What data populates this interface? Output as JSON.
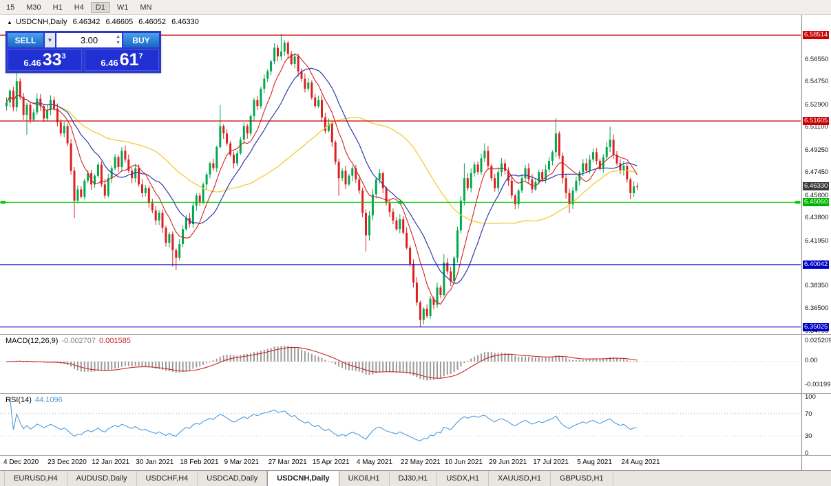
{
  "toolbar": {
    "timeframes": [
      {
        "label": "15",
        "active": false
      },
      {
        "label": "M30",
        "active": false
      },
      {
        "label": "H1",
        "active": false
      },
      {
        "label": "H4",
        "active": false
      },
      {
        "label": "D1",
        "active": true
      },
      {
        "label": "W1",
        "active": false
      },
      {
        "label": "MN",
        "active": false
      }
    ]
  },
  "chart_header": {
    "toggle_marker": "▲",
    "symbol_title": "USDCNH,Daily",
    "open": "6.46342",
    "high": "6.46605",
    "low": "6.46052",
    "close": "6.46330"
  },
  "trade_panel": {
    "sell_label": "SELL",
    "buy_label": "BUY",
    "lot_size": "3.00",
    "bid": {
      "small": "6.46",
      "big": "33",
      "sup": "3"
    },
    "ask": {
      "small": "6.46",
      "big": "61",
      "sup": "7"
    }
  },
  "price_axis": {
    "scale_labels": [
      "6.56550",
      "6.54750",
      "6.52900",
      "6.51100",
      "6.49250",
      "6.47450",
      "6.45600",
      "6.43800",
      "6.41950",
      "6.40150",
      "6.38350",
      "6.36500",
      "6.34700"
    ],
    "badges": [
      {
        "text": "6.58514",
        "price": 6.58514,
        "color": "#c80000"
      },
      {
        "text": "6.51605",
        "price": 6.51605,
        "color": "#c80000"
      },
      {
        "text": "6.46330",
        "price": 6.4633,
        "color": "#3c3c3c"
      },
      {
        "text": "6.45060",
        "price": 6.4506,
        "color": "#00b400"
      },
      {
        "text": "6.40042",
        "price": 6.40042,
        "color": "#0000c8"
      },
      {
        "text": "6.35025",
        "price": 6.35025,
        "color": "#0000c8"
      }
    ]
  },
  "macd_panel": {
    "label": "MACD(12,26,9)",
    "value_main": "-0.002707",
    "value_signal": "0.001585",
    "axis_top": "0.025209",
    "axis_mid": "0.00",
    "axis_bottom": "-0.031991"
  },
  "rsi_panel": {
    "label": "RSI(14)",
    "value": "44.1096",
    "axis_labels": [
      {
        "text": "100",
        "value": 100
      },
      {
        "text": "70",
        "value": 70
      },
      {
        "text": "30",
        "value": 30
      },
      {
        "text": "0",
        "value": 0
      }
    ]
  },
  "tabs": [
    {
      "label": "EURUSD,H4",
      "active": false
    },
    {
      "label": "AUDUSD,Daily",
      "active": false
    },
    {
      "label": "USDCHF,H4",
      "active": false
    },
    {
      "label": "USDCAD,Daily",
      "active": false
    },
    {
      "label": "USDCNH,Daily",
      "active": true
    },
    {
      "label": "UKOil,H1",
      "active": false
    },
    {
      "label": "DJ30,H1",
      "active": false
    },
    {
      "label": "USDX,H1",
      "active": false
    },
    {
      "label": "XAUUSD,H1",
      "active": false
    },
    {
      "label": "GBPUSD,H1",
      "active": false
    }
  ],
  "chart_data": {
    "type": "candlestick",
    "symbol": "USDCNH",
    "timeframe": "Daily",
    "current_ohlc": {
      "open": 6.46342,
      "high": 6.46605,
      "low": 6.46052,
      "close": 6.4633
    },
    "y_range": [
      6.34454,
      6.60125
    ],
    "x_labels": [
      "4 Dec 2020",
      "23 Dec 2020",
      "12 Jan 2021",
      "30 Jan 2021",
      "18 Feb 2021",
      "9 Mar 2021",
      "27 Mar 2021",
      "15 Apr 2021",
      "4 May 2021",
      "22 May 2021",
      "10 Jun 2021",
      "29 Jun 2021",
      "17 Jul 2021",
      "5 Aug 2021",
      "24 Aug 2021"
    ],
    "colors": {
      "candle_up": "#00a84e",
      "candle_down": "#dc2020",
      "ma_fast": "#d02020",
      "ma_mid": "#2b3aa8",
      "ma_slow": "#f0d040",
      "macd_bars": "#9a9a9a",
      "macd_signal": "#cc2222",
      "rsi_line": "#4a9ade",
      "level_dotted": "#bdbdbd"
    },
    "overlays": [
      {
        "name": "ma-fast",
        "period": 8,
        "color_key": "ma_fast"
      },
      {
        "name": "ma-mid",
        "period": 16,
        "color_key": "ma_mid"
      },
      {
        "name": "ma-slow",
        "period": 45,
        "color_key": "ma_slow"
      }
    ],
    "horizontal_lines": [
      {
        "price": 6.58514,
        "color": "#c80000",
        "handles": false
      },
      {
        "price": 6.51605,
        "color": "#c80000",
        "handles": false
      },
      {
        "price": 6.4506,
        "color": "#00c800",
        "handles": true
      },
      {
        "price": 6.40042,
        "color": "#0000c8",
        "handles": false
      },
      {
        "price": 6.35025,
        "color": "#0000c8",
        "handles": false
      }
    ],
    "indicators": [
      {
        "name": "MACD",
        "params": [
          12,
          26,
          9
        ],
        "last_main": -0.002707,
        "last_signal": 0.001585
      },
      {
        "name": "RSI",
        "params": [
          14
        ],
        "last_value": 44.1096
      }
    ],
    "candles": {
      "first_open": 6.528,
      "closes": [
        6.531,
        6.5405,
        6.527,
        6.548,
        6.5355,
        6.521,
        6.529,
        6.517,
        6.523,
        6.534,
        6.528,
        6.518,
        6.525,
        6.533,
        6.526,
        6.515,
        6.506,
        6.512,
        6.498,
        6.476,
        6.452,
        6.461,
        6.455,
        6.468,
        6.474,
        6.465,
        6.472,
        6.481,
        6.465,
        6.456,
        6.47,
        6.478,
        6.487,
        6.479,
        6.492,
        6.485,
        6.476,
        6.47,
        6.478,
        6.465,
        6.458,
        6.462,
        6.45,
        6.444,
        6.436,
        6.442,
        6.43,
        6.418,
        6.425,
        6.412,
        6.406,
        6.417,
        6.429,
        6.438,
        6.433,
        6.448,
        6.456,
        6.451,
        6.465,
        6.473,
        6.482,
        6.478,
        6.495,
        6.512,
        6.506,
        6.498,
        6.489,
        6.482,
        6.49,
        6.501,
        6.512,
        6.506,
        6.52,
        6.533,
        6.528,
        6.542,
        6.55,
        6.556,
        6.564,
        6.575,
        6.568,
        6.572,
        6.579,
        6.57,
        6.562,
        6.568,
        6.556,
        6.55,
        6.542,
        6.547,
        6.535,
        6.528,
        6.533,
        6.519,
        6.508,
        6.514,
        6.499,
        6.483,
        6.47,
        6.476,
        6.465,
        6.472,
        6.478,
        6.469,
        6.46,
        6.442,
        6.424,
        6.44,
        6.457,
        6.469,
        6.474,
        6.462,
        6.45,
        6.443,
        6.436,
        6.429,
        6.437,
        6.426,
        6.414,
        6.401,
        6.386,
        6.37,
        6.356,
        6.365,
        6.359,
        6.373,
        6.368,
        6.382,
        6.376,
        6.402,
        6.395,
        6.387,
        6.406,
        6.428,
        6.452,
        6.47,
        6.462,
        6.474,
        6.481,
        6.475,
        6.486,
        6.492,
        6.48,
        6.47,
        6.462,
        6.475,
        6.482,
        6.476,
        6.468,
        6.456,
        6.449,
        6.46,
        6.47,
        6.478,
        6.469,
        6.461,
        6.467,
        6.475,
        6.469,
        6.477,
        6.484,
        6.491,
        6.506,
        6.488,
        6.47,
        6.458,
        6.449,
        6.46,
        6.468,
        6.475,
        6.482,
        6.476,
        6.485,
        6.491,
        6.484,
        6.478,
        6.487,
        6.495,
        6.501,
        6.489,
        6.482,
        6.476,
        6.48,
        6.469,
        6.458,
        6.4634,
        6.4633
      ],
      "high_overrides": {
        "3": 6.5555,
        "63": 6.529,
        "81": 6.5862,
        "129": 6.409,
        "135": 6.482,
        "141": 6.498,
        "162": 6.5185,
        "178": 6.5115,
        "186": 6.46605
      },
      "low_overrides": {
        "6": 6.505,
        "20": 6.438,
        "49": 6.399,
        "50": 6.396,
        "98": 6.456,
        "106": 6.411,
        "122": 6.3505,
        "166": 6.442,
        "184": 6.453,
        "186": 6.46052
      }
    }
  }
}
